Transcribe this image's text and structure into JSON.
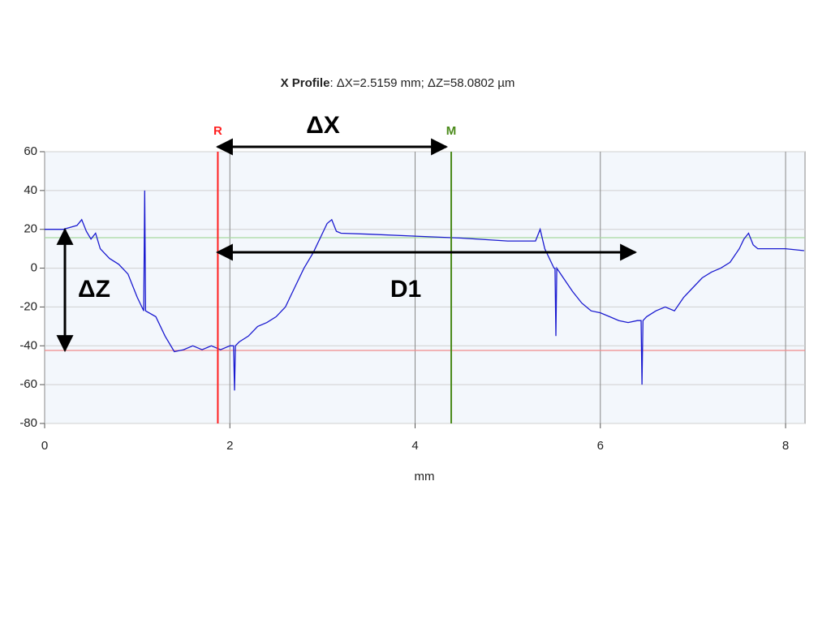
{
  "chart_data": {
    "type": "line",
    "title_bold": "X Profile",
    "title_rest": ": ΔX=2.5159 mm; ΔZ=58.0802 µm",
    "x_label": "mm",
    "xlim": [
      0,
      8.21
    ],
    "ylim": [
      -80,
      60
    ],
    "xticks": [
      0,
      2,
      4,
      6,
      8
    ],
    "yticks": [
      -80,
      -60,
      -40,
      -20,
      0,
      20,
      40,
      60
    ],
    "grid": true,
    "color": "#1a1ad0",
    "x": [
      0,
      0.2,
      0.35,
      0.4,
      0.45,
      0.5,
      0.55,
      0.6,
      0.7,
      0.8,
      0.9,
      1.0,
      1.05,
      1.07,
      1.08,
      1.09,
      1.2,
      1.3,
      1.4,
      1.5,
      1.6,
      1.7,
      1.8,
      1.9,
      2.0,
      2.04,
      2.05,
      2.06,
      2.1,
      2.2,
      2.3,
      2.4,
      2.5,
      2.6,
      2.7,
      2.8,
      2.9,
      3.0,
      3.05,
      3.1,
      3.15,
      3.2,
      3.5,
      4.0,
      4.5,
      5.0,
      5.3,
      5.35,
      5.4,
      5.5,
      5.51,
      5.52,
      5.53,
      5.6,
      5.7,
      5.8,
      5.9,
      6.0,
      6.1,
      6.2,
      6.3,
      6.4,
      6.44,
      6.45,
      6.46,
      6.5,
      6.6,
      6.7,
      6.8,
      6.9,
      7.0,
      7.1,
      7.2,
      7.3,
      7.4,
      7.5,
      7.55,
      7.6,
      7.65,
      7.7,
      8.0,
      8.2
    ],
    "values": [
      20,
      20,
      22,
      25,
      19,
      15,
      18,
      10,
      5,
      2,
      -3,
      -15,
      -20,
      -22,
      40,
      -22,
      -25,
      -35,
      -43,
      -42,
      -40,
      -42,
      -40,
      -42,
      -40,
      -40,
      -63,
      -40,
      -38,
      -35,
      -30,
      -28,
      -25,
      -20,
      -10,
      0,
      8,
      18,
      23,
      25,
      19,
      18,
      17.5,
      16.5,
      15.5,
      14,
      14,
      20,
      10,
      0,
      0,
      -35,
      0,
      -5,
      -12,
      -18,
      -22,
      -23,
      -25,
      -27,
      -28,
      -27,
      -27,
      -60,
      -27,
      -25,
      -22,
      -20,
      -22,
      -15,
      -10,
      -5,
      -2,
      0,
      3,
      10,
      15,
      18,
      12,
      10,
      10,
      9
    ],
    "cursors": [
      {
        "label": "R",
        "x": 1.87,
        "color": "#ff2020"
      },
      {
        "label": "M",
        "x": 4.39,
        "color": "#4a8a1a"
      }
    ],
    "ref_lines": [
      {
        "y": 15.7,
        "color": "#a6d8a0"
      },
      {
        "y": -42.4,
        "color": "#f08a8a"
      }
    ],
    "annotations": [
      "ΔX",
      "ΔZ",
      "D1"
    ]
  }
}
